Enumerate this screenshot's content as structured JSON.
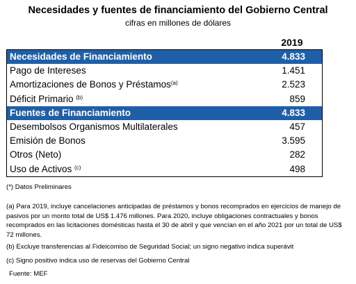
{
  "title": "Necesidades y fuentes de financiamiento del Gobierno Central",
  "subtitle": "cifras en millones de dólares",
  "year_header": "2019",
  "rows": [
    {
      "label": "Necesidades de Financiamiento",
      "sup": "",
      "value": "4.833"
    },
    {
      "label": "Pago de Intereses",
      "sup": "",
      "value": "1.451"
    },
    {
      "label": "Amortizaciones de Bonos y Préstamos",
      "sup": "(a)",
      "value": "2.523"
    },
    {
      "label": "Déficit Primario ",
      "sup": "(b)",
      "value": "859"
    },
    {
      "label": "Fuentes de Financiamiento",
      "sup": "",
      "value": "4.833"
    },
    {
      "label": "Desembolsos Organismos Multilaterales",
      "sup": "",
      "value": "457"
    },
    {
      "label": "Emisión de Bonos",
      "sup": "",
      "value": "3.595"
    },
    {
      "label": "Otros (Neto)",
      "sup": "",
      "value": "282"
    },
    {
      "label": "Uso de Activos ",
      "sup": "(c)",
      "value": "498"
    }
  ],
  "notes": {
    "preliminary": "(*) Datos Preliminares",
    "a": "(a) Para 2019, incluye cancelaciones anticipadas de préstamos y bonos recomprados en ejercicios de manejo de pasivos por un monto total de US$ 1.476 millones. Para 2020, incluye obligaciones contractuales y bonos recomprados en las licitaciones domésticas hasta el 30 de abril y que vencían en el año 2021 por un total de US$ 72 millones.",
    "b": "(b) Excluye transferencias al Fideicomiso de Seguridad Social; un signo negativo indica superávit",
    "c": "(c) Signo positivo indica uso de reservas del Gobierno Central",
    "source": "Fuente: MEF"
  }
}
